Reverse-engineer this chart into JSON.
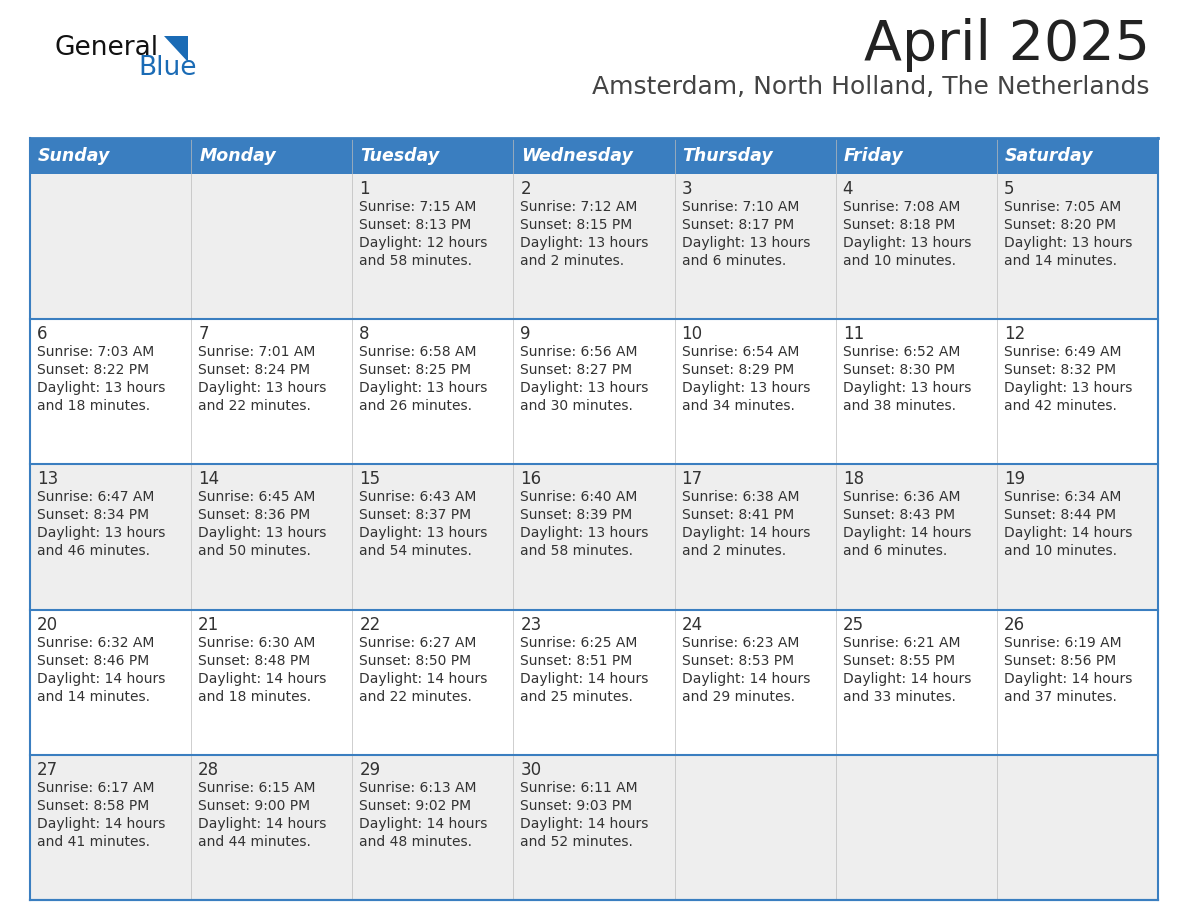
{
  "title": "April 2025",
  "subtitle": "Amsterdam, North Holland, The Netherlands",
  "header_bg": "#3A7EC0",
  "header_text_color": "#FFFFFF",
  "cell_bg_odd": "#EEEEEE",
  "cell_bg_even": "#FFFFFF",
  "border_color": "#3A7EC0",
  "row_sep_color": "#3A7EC0",
  "text_color": "#333333",
  "days_of_week": [
    "Sunday",
    "Monday",
    "Tuesday",
    "Wednesday",
    "Thursday",
    "Friday",
    "Saturday"
  ],
  "calendar": [
    [
      {
        "day": null,
        "sunrise": null,
        "sunset": null,
        "daylight1": null,
        "daylight2": null
      },
      {
        "day": null,
        "sunrise": null,
        "sunset": null,
        "daylight1": null,
        "daylight2": null
      },
      {
        "day": "1",
        "sunrise": "Sunrise: 7:15 AM",
        "sunset": "Sunset: 8:13 PM",
        "daylight1": "Daylight: 12 hours",
        "daylight2": "and 58 minutes."
      },
      {
        "day": "2",
        "sunrise": "Sunrise: 7:12 AM",
        "sunset": "Sunset: 8:15 PM",
        "daylight1": "Daylight: 13 hours",
        "daylight2": "and 2 minutes."
      },
      {
        "day": "3",
        "sunrise": "Sunrise: 7:10 AM",
        "sunset": "Sunset: 8:17 PM",
        "daylight1": "Daylight: 13 hours",
        "daylight2": "and 6 minutes."
      },
      {
        "day": "4",
        "sunrise": "Sunrise: 7:08 AM",
        "sunset": "Sunset: 8:18 PM",
        "daylight1": "Daylight: 13 hours",
        "daylight2": "and 10 minutes."
      },
      {
        "day": "5",
        "sunrise": "Sunrise: 7:05 AM",
        "sunset": "Sunset: 8:20 PM",
        "daylight1": "Daylight: 13 hours",
        "daylight2": "and 14 minutes."
      }
    ],
    [
      {
        "day": "6",
        "sunrise": "Sunrise: 7:03 AM",
        "sunset": "Sunset: 8:22 PM",
        "daylight1": "Daylight: 13 hours",
        "daylight2": "and 18 minutes."
      },
      {
        "day": "7",
        "sunrise": "Sunrise: 7:01 AM",
        "sunset": "Sunset: 8:24 PM",
        "daylight1": "Daylight: 13 hours",
        "daylight2": "and 22 minutes."
      },
      {
        "day": "8",
        "sunrise": "Sunrise: 6:58 AM",
        "sunset": "Sunset: 8:25 PM",
        "daylight1": "Daylight: 13 hours",
        "daylight2": "and 26 minutes."
      },
      {
        "day": "9",
        "sunrise": "Sunrise: 6:56 AM",
        "sunset": "Sunset: 8:27 PM",
        "daylight1": "Daylight: 13 hours",
        "daylight2": "and 30 minutes."
      },
      {
        "day": "10",
        "sunrise": "Sunrise: 6:54 AM",
        "sunset": "Sunset: 8:29 PM",
        "daylight1": "Daylight: 13 hours",
        "daylight2": "and 34 minutes."
      },
      {
        "day": "11",
        "sunrise": "Sunrise: 6:52 AM",
        "sunset": "Sunset: 8:30 PM",
        "daylight1": "Daylight: 13 hours",
        "daylight2": "and 38 minutes."
      },
      {
        "day": "12",
        "sunrise": "Sunrise: 6:49 AM",
        "sunset": "Sunset: 8:32 PM",
        "daylight1": "Daylight: 13 hours",
        "daylight2": "and 42 minutes."
      }
    ],
    [
      {
        "day": "13",
        "sunrise": "Sunrise: 6:47 AM",
        "sunset": "Sunset: 8:34 PM",
        "daylight1": "Daylight: 13 hours",
        "daylight2": "and 46 minutes."
      },
      {
        "day": "14",
        "sunrise": "Sunrise: 6:45 AM",
        "sunset": "Sunset: 8:36 PM",
        "daylight1": "Daylight: 13 hours",
        "daylight2": "and 50 minutes."
      },
      {
        "day": "15",
        "sunrise": "Sunrise: 6:43 AM",
        "sunset": "Sunset: 8:37 PM",
        "daylight1": "Daylight: 13 hours",
        "daylight2": "and 54 minutes."
      },
      {
        "day": "16",
        "sunrise": "Sunrise: 6:40 AM",
        "sunset": "Sunset: 8:39 PM",
        "daylight1": "Daylight: 13 hours",
        "daylight2": "and 58 minutes."
      },
      {
        "day": "17",
        "sunrise": "Sunrise: 6:38 AM",
        "sunset": "Sunset: 8:41 PM",
        "daylight1": "Daylight: 14 hours",
        "daylight2": "and 2 minutes."
      },
      {
        "day": "18",
        "sunrise": "Sunrise: 6:36 AM",
        "sunset": "Sunset: 8:43 PM",
        "daylight1": "Daylight: 14 hours",
        "daylight2": "and 6 minutes."
      },
      {
        "day": "19",
        "sunrise": "Sunrise: 6:34 AM",
        "sunset": "Sunset: 8:44 PM",
        "daylight1": "Daylight: 14 hours",
        "daylight2": "and 10 minutes."
      }
    ],
    [
      {
        "day": "20",
        "sunrise": "Sunrise: 6:32 AM",
        "sunset": "Sunset: 8:46 PM",
        "daylight1": "Daylight: 14 hours",
        "daylight2": "and 14 minutes."
      },
      {
        "day": "21",
        "sunrise": "Sunrise: 6:30 AM",
        "sunset": "Sunset: 8:48 PM",
        "daylight1": "Daylight: 14 hours",
        "daylight2": "and 18 minutes."
      },
      {
        "day": "22",
        "sunrise": "Sunrise: 6:27 AM",
        "sunset": "Sunset: 8:50 PM",
        "daylight1": "Daylight: 14 hours",
        "daylight2": "and 22 minutes."
      },
      {
        "day": "23",
        "sunrise": "Sunrise: 6:25 AM",
        "sunset": "Sunset: 8:51 PM",
        "daylight1": "Daylight: 14 hours",
        "daylight2": "and 25 minutes."
      },
      {
        "day": "24",
        "sunrise": "Sunrise: 6:23 AM",
        "sunset": "Sunset: 8:53 PM",
        "daylight1": "Daylight: 14 hours",
        "daylight2": "and 29 minutes."
      },
      {
        "day": "25",
        "sunrise": "Sunrise: 6:21 AM",
        "sunset": "Sunset: 8:55 PM",
        "daylight1": "Daylight: 14 hours",
        "daylight2": "and 33 minutes."
      },
      {
        "day": "26",
        "sunrise": "Sunrise: 6:19 AM",
        "sunset": "Sunset: 8:56 PM",
        "daylight1": "Daylight: 14 hours",
        "daylight2": "and 37 minutes."
      }
    ],
    [
      {
        "day": "27",
        "sunrise": "Sunrise: 6:17 AM",
        "sunset": "Sunset: 8:58 PM",
        "daylight1": "Daylight: 14 hours",
        "daylight2": "and 41 minutes."
      },
      {
        "day": "28",
        "sunrise": "Sunrise: 6:15 AM",
        "sunset": "Sunset: 9:00 PM",
        "daylight1": "Daylight: 14 hours",
        "daylight2": "and 44 minutes."
      },
      {
        "day": "29",
        "sunrise": "Sunrise: 6:13 AM",
        "sunset": "Sunset: 9:02 PM",
        "daylight1": "Daylight: 14 hours",
        "daylight2": "and 48 minutes."
      },
      {
        "day": "30",
        "sunrise": "Sunrise: 6:11 AM",
        "sunset": "Sunset: 9:03 PM",
        "daylight1": "Daylight: 14 hours",
        "daylight2": "and 52 minutes."
      },
      {
        "day": null,
        "sunrise": null,
        "sunset": null,
        "daylight1": null,
        "daylight2": null
      },
      {
        "day": null,
        "sunrise": null,
        "sunset": null,
        "daylight1": null,
        "daylight2": null
      },
      {
        "day": null,
        "sunrise": null,
        "sunset": null,
        "daylight1": null,
        "daylight2": null
      }
    ]
  ],
  "logo_general_color": "#111111",
  "logo_blue_color": "#1A6BB5",
  "logo_triangle_color": "#1A6BB5",
  "title_color": "#222222",
  "subtitle_color": "#444444"
}
